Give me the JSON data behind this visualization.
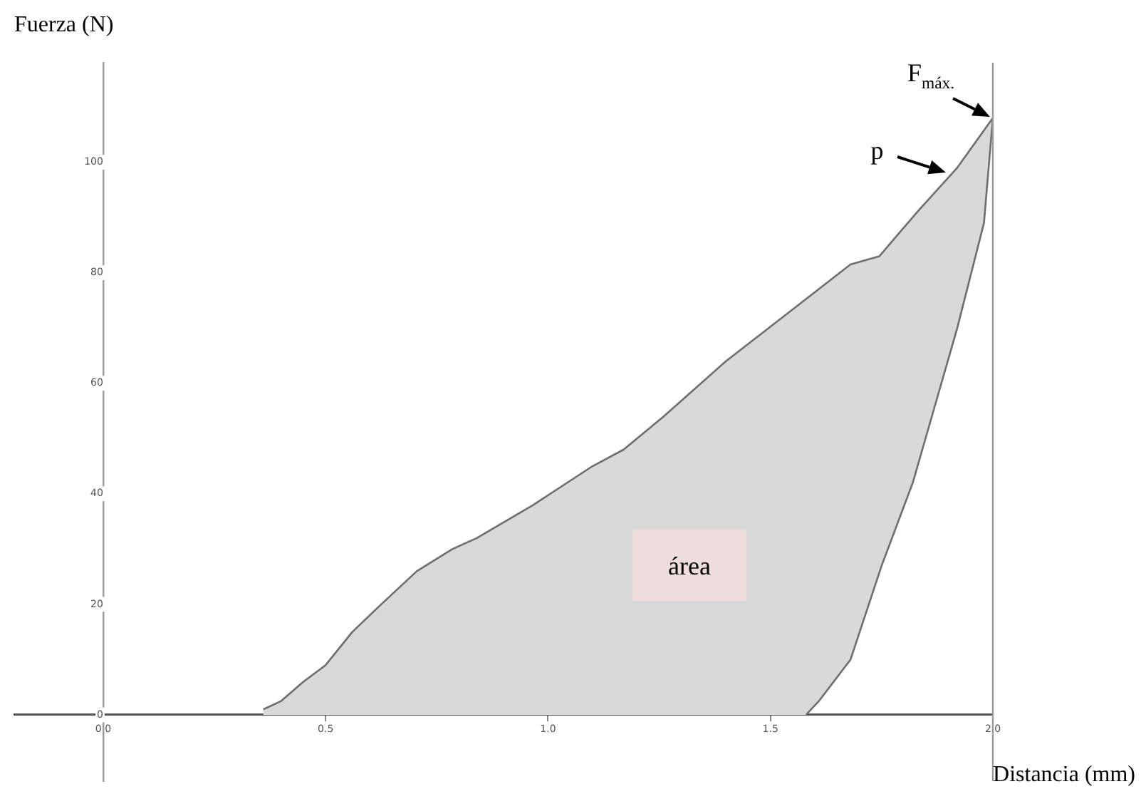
{
  "chart_data": {
    "type": "line",
    "xlabel": "Distancia (mm)",
    "ylabel": "Fuerza (N)",
    "xlim": [
      -0.2,
      2.0
    ],
    "ylim": [
      -12,
      118
    ],
    "xticks": [
      {
        "value": 0,
        "label": "0.0"
      },
      {
        "value": 0.5,
        "label": "0.5"
      },
      {
        "value": 1,
        "label": "1.0"
      },
      {
        "value": 1.5,
        "label": "1.5"
      },
      {
        "value": 2,
        "label": "2.0"
      }
    ],
    "yticks": [
      0,
      20,
      40,
      60,
      80,
      100
    ],
    "grid": false,
    "legend": false,
    "marker": "none",
    "line_style": "solid",
    "series": [
      {
        "type": "area",
        "color": "#6e6e6e",
        "x": [
          0.36,
          0.4,
          0.45,
          0.5,
          0.56,
          0.625,
          0.705,
          0.785,
          0.84,
          0.967,
          1.1,
          1.17,
          1.26,
          1.4,
          1.56,
          1.68,
          1.745,
          1.83,
          1.92,
          2.0,
          1.98,
          1.92,
          1.87,
          1.82,
          1.75,
          1.68,
          1.61,
          1.58
        ],
        "values": [
          1,
          2.5,
          6,
          9,
          15,
          20,
          26,
          30,
          32,
          38,
          45,
          48,
          54,
          64,
          74,
          81.5,
          83,
          91,
          99,
          108,
          89,
          70,
          56,
          42,
          27,
          10,
          2.6,
          0
        ]
      }
    ],
    "ref_lines": [
      {
        "axis": "x",
        "value": 2.0,
        "color": "#9a9a9a"
      }
    ],
    "annotations": [
      {
        "text": "F$_{máx.}$",
        "x": 2.0,
        "y": 108
      },
      {
        "text": "p",
        "x": 1.9,
        "y": 98
      },
      "área"
    ]
  }
}
